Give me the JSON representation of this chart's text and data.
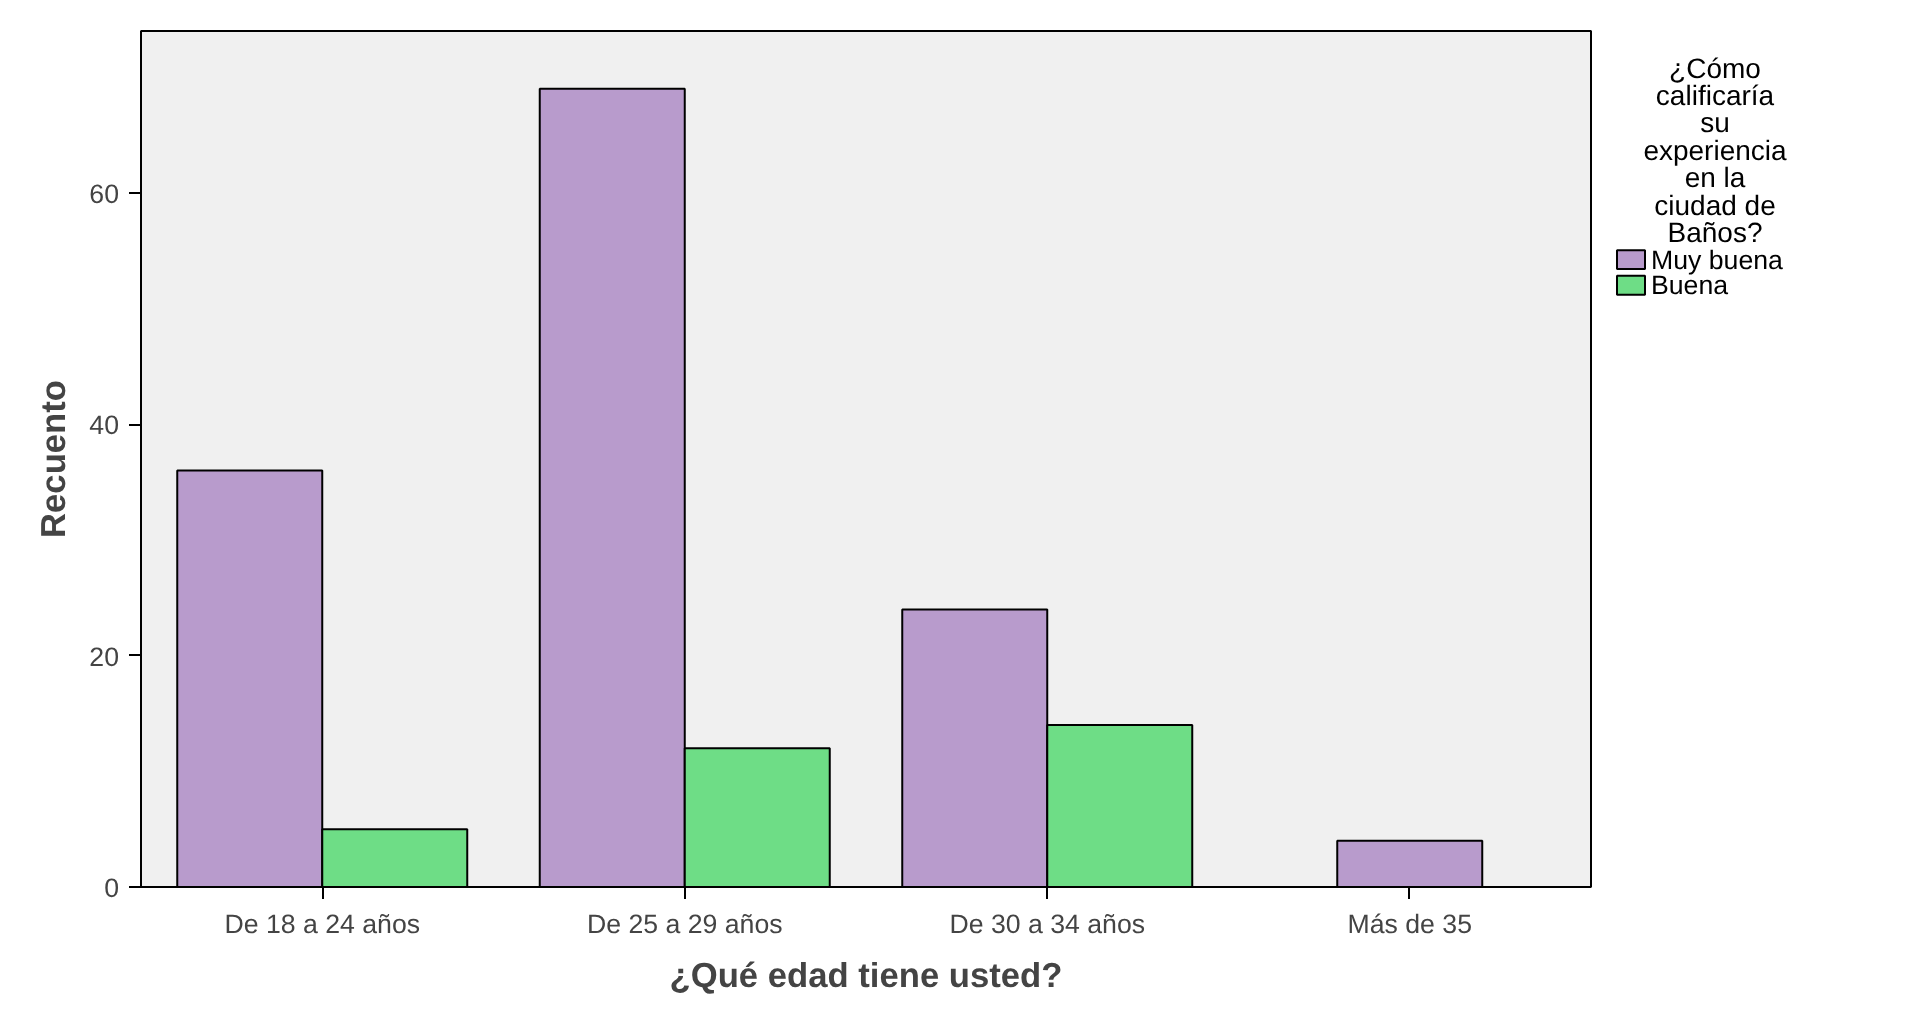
{
  "chart_data": {
    "type": "bar",
    "xlabel": "¿Qué edad tiene usted?",
    "ylabel": "Recuento",
    "legend_title": "¿Cómo calificaría su experiencia en la ciudad de Baños?",
    "categories": [
      "De 18 a 24 años",
      "De 25 a 29 años",
      "De 30 a 34 años",
      "Más de 35"
    ],
    "series": [
      {
        "name": "Muy buena",
        "color": "#b89bcc",
        "values": [
          36,
          69,
          24,
          4
        ]
      },
      {
        "name": "Buena",
        "color": "#6edd86",
        "values": [
          5,
          12,
          14,
          null
        ]
      }
    ],
    "ylim": [
      0,
      74
    ],
    "yticks": [
      0,
      20,
      40,
      60
    ],
    "grid": false,
    "legend": "top right"
  }
}
